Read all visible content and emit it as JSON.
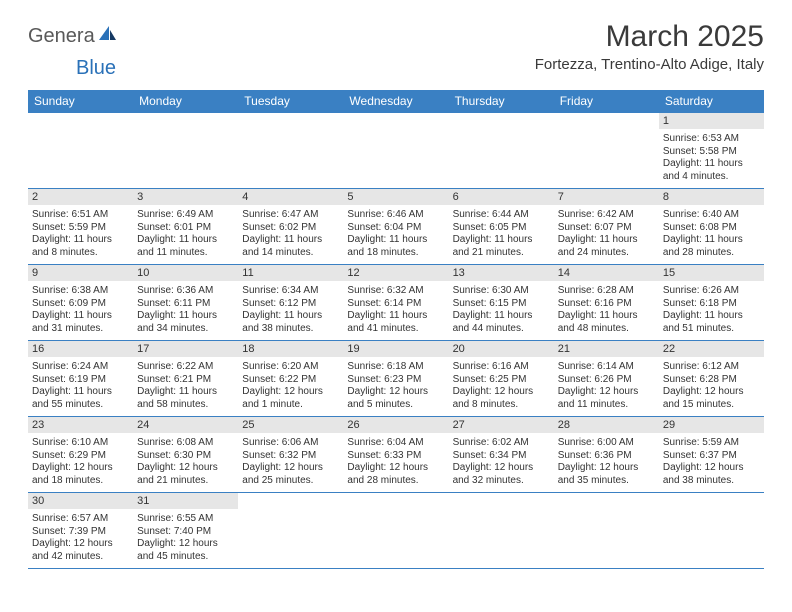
{
  "brand": {
    "general": "Genera",
    "blue": "Blue"
  },
  "title": "March 2025",
  "location": "Fortezza, Trentino-Alto Adige, Italy",
  "colors": {
    "header_bg": "#3a80c3",
    "header_text": "#ffffff",
    "daynum_bg": "#e6e6e6",
    "border": "#3a80c3",
    "text": "#333333",
    "logo_gray": "#595959",
    "logo_blue": "#2a71b8"
  },
  "weekdays": [
    "Sunday",
    "Monday",
    "Tuesday",
    "Wednesday",
    "Thursday",
    "Friday",
    "Saturday"
  ],
  "cells": [
    {
      "day": "",
      "sunrise": "",
      "sunset": "",
      "daylight": ""
    },
    {
      "day": "",
      "sunrise": "",
      "sunset": "",
      "daylight": ""
    },
    {
      "day": "",
      "sunrise": "",
      "sunset": "",
      "daylight": ""
    },
    {
      "day": "",
      "sunrise": "",
      "sunset": "",
      "daylight": ""
    },
    {
      "day": "",
      "sunrise": "",
      "sunset": "",
      "daylight": ""
    },
    {
      "day": "",
      "sunrise": "",
      "sunset": "",
      "daylight": ""
    },
    {
      "day": "1",
      "sunrise": "Sunrise: 6:53 AM",
      "sunset": "Sunset: 5:58 PM",
      "daylight": "Daylight: 11 hours and 4 minutes."
    },
    {
      "day": "2",
      "sunrise": "Sunrise: 6:51 AM",
      "sunset": "Sunset: 5:59 PM",
      "daylight": "Daylight: 11 hours and 8 minutes."
    },
    {
      "day": "3",
      "sunrise": "Sunrise: 6:49 AM",
      "sunset": "Sunset: 6:01 PM",
      "daylight": "Daylight: 11 hours and 11 minutes."
    },
    {
      "day": "4",
      "sunrise": "Sunrise: 6:47 AM",
      "sunset": "Sunset: 6:02 PM",
      "daylight": "Daylight: 11 hours and 14 minutes."
    },
    {
      "day": "5",
      "sunrise": "Sunrise: 6:46 AM",
      "sunset": "Sunset: 6:04 PM",
      "daylight": "Daylight: 11 hours and 18 minutes."
    },
    {
      "day": "6",
      "sunrise": "Sunrise: 6:44 AM",
      "sunset": "Sunset: 6:05 PM",
      "daylight": "Daylight: 11 hours and 21 minutes."
    },
    {
      "day": "7",
      "sunrise": "Sunrise: 6:42 AM",
      "sunset": "Sunset: 6:07 PM",
      "daylight": "Daylight: 11 hours and 24 minutes."
    },
    {
      "day": "8",
      "sunrise": "Sunrise: 6:40 AM",
      "sunset": "Sunset: 6:08 PM",
      "daylight": "Daylight: 11 hours and 28 minutes."
    },
    {
      "day": "9",
      "sunrise": "Sunrise: 6:38 AM",
      "sunset": "Sunset: 6:09 PM",
      "daylight": "Daylight: 11 hours and 31 minutes."
    },
    {
      "day": "10",
      "sunrise": "Sunrise: 6:36 AM",
      "sunset": "Sunset: 6:11 PM",
      "daylight": "Daylight: 11 hours and 34 minutes."
    },
    {
      "day": "11",
      "sunrise": "Sunrise: 6:34 AM",
      "sunset": "Sunset: 6:12 PM",
      "daylight": "Daylight: 11 hours and 38 minutes."
    },
    {
      "day": "12",
      "sunrise": "Sunrise: 6:32 AM",
      "sunset": "Sunset: 6:14 PM",
      "daylight": "Daylight: 11 hours and 41 minutes."
    },
    {
      "day": "13",
      "sunrise": "Sunrise: 6:30 AM",
      "sunset": "Sunset: 6:15 PM",
      "daylight": "Daylight: 11 hours and 44 minutes."
    },
    {
      "day": "14",
      "sunrise": "Sunrise: 6:28 AM",
      "sunset": "Sunset: 6:16 PM",
      "daylight": "Daylight: 11 hours and 48 minutes."
    },
    {
      "day": "15",
      "sunrise": "Sunrise: 6:26 AM",
      "sunset": "Sunset: 6:18 PM",
      "daylight": "Daylight: 11 hours and 51 minutes."
    },
    {
      "day": "16",
      "sunrise": "Sunrise: 6:24 AM",
      "sunset": "Sunset: 6:19 PM",
      "daylight": "Daylight: 11 hours and 55 minutes."
    },
    {
      "day": "17",
      "sunrise": "Sunrise: 6:22 AM",
      "sunset": "Sunset: 6:21 PM",
      "daylight": "Daylight: 11 hours and 58 minutes."
    },
    {
      "day": "18",
      "sunrise": "Sunrise: 6:20 AM",
      "sunset": "Sunset: 6:22 PM",
      "daylight": "Daylight: 12 hours and 1 minute."
    },
    {
      "day": "19",
      "sunrise": "Sunrise: 6:18 AM",
      "sunset": "Sunset: 6:23 PM",
      "daylight": "Daylight: 12 hours and 5 minutes."
    },
    {
      "day": "20",
      "sunrise": "Sunrise: 6:16 AM",
      "sunset": "Sunset: 6:25 PM",
      "daylight": "Daylight: 12 hours and 8 minutes."
    },
    {
      "day": "21",
      "sunrise": "Sunrise: 6:14 AM",
      "sunset": "Sunset: 6:26 PM",
      "daylight": "Daylight: 12 hours and 11 minutes."
    },
    {
      "day": "22",
      "sunrise": "Sunrise: 6:12 AM",
      "sunset": "Sunset: 6:28 PM",
      "daylight": "Daylight: 12 hours and 15 minutes."
    },
    {
      "day": "23",
      "sunrise": "Sunrise: 6:10 AM",
      "sunset": "Sunset: 6:29 PM",
      "daylight": "Daylight: 12 hours and 18 minutes."
    },
    {
      "day": "24",
      "sunrise": "Sunrise: 6:08 AM",
      "sunset": "Sunset: 6:30 PM",
      "daylight": "Daylight: 12 hours and 21 minutes."
    },
    {
      "day": "25",
      "sunrise": "Sunrise: 6:06 AM",
      "sunset": "Sunset: 6:32 PM",
      "daylight": "Daylight: 12 hours and 25 minutes."
    },
    {
      "day": "26",
      "sunrise": "Sunrise: 6:04 AM",
      "sunset": "Sunset: 6:33 PM",
      "daylight": "Daylight: 12 hours and 28 minutes."
    },
    {
      "day": "27",
      "sunrise": "Sunrise: 6:02 AM",
      "sunset": "Sunset: 6:34 PM",
      "daylight": "Daylight: 12 hours and 32 minutes."
    },
    {
      "day": "28",
      "sunrise": "Sunrise: 6:00 AM",
      "sunset": "Sunset: 6:36 PM",
      "daylight": "Daylight: 12 hours and 35 minutes."
    },
    {
      "day": "29",
      "sunrise": "Sunrise: 5:59 AM",
      "sunset": "Sunset: 6:37 PM",
      "daylight": "Daylight: 12 hours and 38 minutes."
    },
    {
      "day": "30",
      "sunrise": "Sunrise: 6:57 AM",
      "sunset": "Sunset: 7:39 PM",
      "daylight": "Daylight: 12 hours and 42 minutes."
    },
    {
      "day": "31",
      "sunrise": "Sunrise: 6:55 AM",
      "sunset": "Sunset: 7:40 PM",
      "daylight": "Daylight: 12 hours and 45 minutes."
    },
    {
      "day": "",
      "sunrise": "",
      "sunset": "",
      "daylight": ""
    },
    {
      "day": "",
      "sunrise": "",
      "sunset": "",
      "daylight": ""
    },
    {
      "day": "",
      "sunrise": "",
      "sunset": "",
      "daylight": ""
    },
    {
      "day": "",
      "sunrise": "",
      "sunset": "",
      "daylight": ""
    },
    {
      "day": "",
      "sunrise": "",
      "sunset": "",
      "daylight": ""
    }
  ]
}
